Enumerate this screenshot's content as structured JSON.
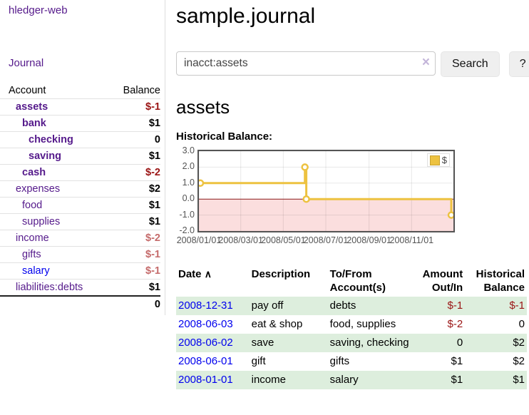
{
  "app": {
    "title": "hledger-web",
    "journal_link": "Journal"
  },
  "sidebar": {
    "headers": {
      "account": "Account",
      "balance": "Balance"
    },
    "rows": [
      {
        "account": "assets",
        "balance": "$-1"
      },
      {
        "account": "bank",
        "balance": "$1"
      },
      {
        "account": "checking",
        "balance": "0"
      },
      {
        "account": "saving",
        "balance": "$1"
      },
      {
        "account": "cash",
        "balance": "$-2"
      },
      {
        "account": "expenses",
        "balance": "$2"
      },
      {
        "account": "food",
        "balance": "$1"
      },
      {
        "account": "supplies",
        "balance": "$1"
      },
      {
        "account": "income",
        "balance": "$-2"
      },
      {
        "account": "gifts",
        "balance": "$-1"
      },
      {
        "account": "salary",
        "balance": "$-1"
      },
      {
        "account": "liabilities:debts",
        "balance": "$1"
      }
    ],
    "total": "0"
  },
  "header": {
    "title": "sample.journal"
  },
  "search": {
    "value": "inacct:assets",
    "clear_icon": "×",
    "search_button": "Search",
    "help_button": "?"
  },
  "account_page": {
    "heading": "assets",
    "chart_label": "Historical Balance:"
  },
  "chart_data": {
    "type": "line",
    "title": "Historical Balance",
    "step": true,
    "series": [
      {
        "name": "$",
        "points": [
          {
            "date": "2008-01-01",
            "value": 1
          },
          {
            "date": "2008-06-01",
            "value": 2
          },
          {
            "date": "2008-06-03",
            "value": 0
          },
          {
            "date": "2008-12-31",
            "value": -1
          }
        ]
      }
    ],
    "xlim": [
      "2008-01-01",
      "2008-12-31"
    ],
    "ylim": [
      -2,
      3
    ],
    "yticks": [
      3.0,
      2.0,
      1.0,
      0.0,
      -1.0,
      -2.0
    ],
    "ytick_labels": [
      "3.0",
      "2.0",
      "1.0",
      "0.0",
      "-1.0",
      "-2.0"
    ],
    "xticks": [
      "2008-01-01",
      "2008-03-01",
      "2008-05-01",
      "2008-07-01",
      "2008-09-01",
      "2008-11-01"
    ],
    "xtick_labels": [
      "2008/01/01",
      "2008/03/01",
      "2008/05/01",
      "2008/07/01",
      "2008/09/01",
      "2008/11/01"
    ],
    "legend": {
      "label": "$",
      "position": "top-right"
    },
    "grid": true,
    "colors": {
      "line": "#edc240",
      "negative_fill": "#fbdede",
      "zero_line": "#8b1a1a",
      "border": "#545454"
    }
  },
  "register": {
    "headers": {
      "date": "Date",
      "sort_icon": "∧",
      "description": "Description",
      "accounts": "To/From Account(s)",
      "amount": "Amount Out/In",
      "balance": "Historical Balance"
    },
    "rows": [
      {
        "date": "2008-12-31",
        "description": "pay off",
        "accounts": "debts",
        "amount": "$-1",
        "balance": "$-1"
      },
      {
        "date": "2008-06-03",
        "description": "eat & shop",
        "accounts": "food, supplies",
        "amount": "$-2",
        "balance": "0"
      },
      {
        "date": "2008-06-02",
        "description": "save",
        "accounts": "saving, checking",
        "amount": "0",
        "balance": "$2"
      },
      {
        "date": "2008-06-01",
        "description": "gift",
        "accounts": "gifts",
        "amount": "$1",
        "balance": "$2"
      },
      {
        "date": "2008-01-01",
        "description": "income",
        "accounts": "salary",
        "amount": "$1",
        "balance": "$1"
      }
    ]
  }
}
